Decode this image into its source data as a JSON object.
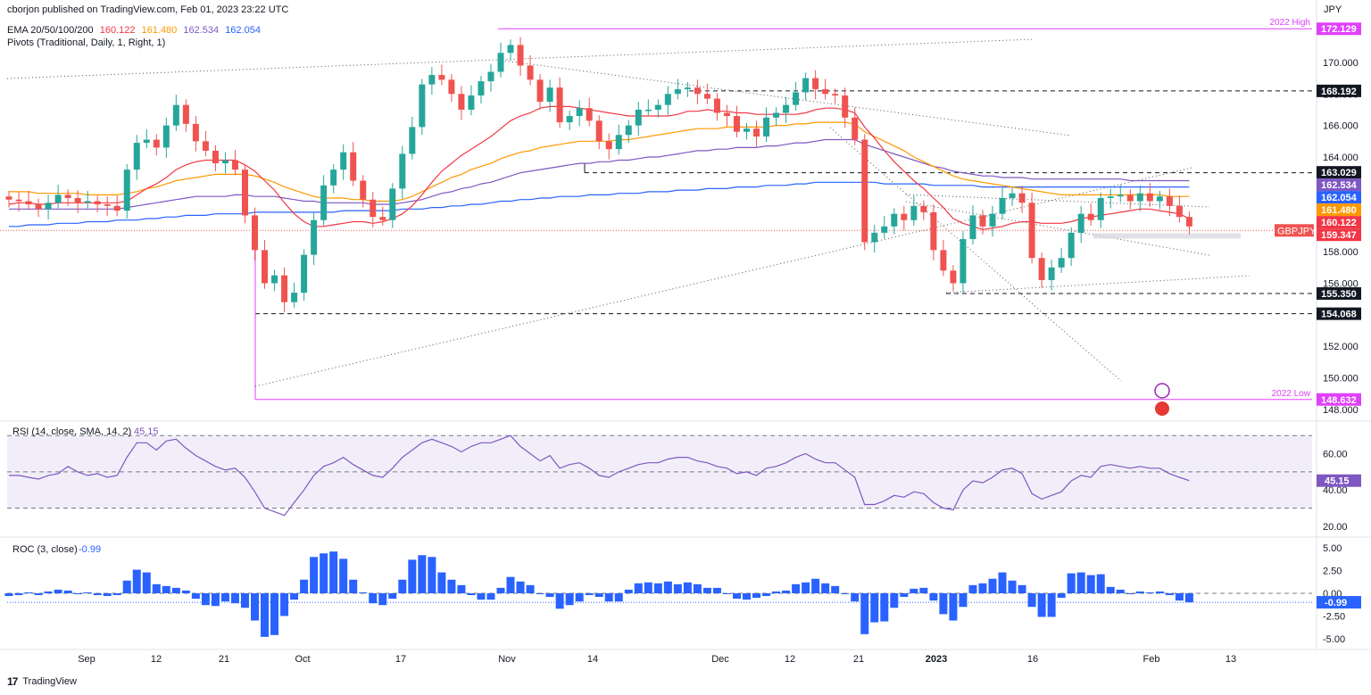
{
  "header": {
    "publisher": "cborjon published on TradingView.com, Feb 01, 2023 23:22 UTC",
    "ema_label": "EMA 20/50/100/200",
    "ema_values": [
      "160.122",
      "161.480",
      "162.534",
      "162.054"
    ],
    "pivots_label": "Pivots (Traditional, Daily, 1, Right, 1)",
    "currency": "JPY"
  },
  "colors": {
    "bull": "#26a69a",
    "bear": "#ef5350",
    "ema20": "#f23645",
    "ema50": "#ff9800",
    "ema100": "#7e57c2",
    "ema200": "#2962ff",
    "pivot": "#e040fb",
    "rsi": "#7e57c2",
    "roc": "#2962ff"
  },
  "chart_data": [
    {
      "type": "candlestick",
      "symbol": "GBPJPY",
      "last_price": "159.347",
      "x_labels": [
        "Sep",
        "12",
        "21",
        "Oct",
        "17",
        "Nov",
        "14",
        "Dec",
        "12",
        "21",
        "2023",
        "16",
        "Feb",
        "13"
      ],
      "ylim": [
        147.6,
        173.5
      ],
      "y_ticks": [
        "148.000",
        "150.000",
        "152.000",
        "154.000",
        "156.000",
        "158.000",
        "160.000",
        "162.000",
        "164.000",
        "166.000",
        "168.000",
        "170.000"
      ],
      "axis_badges": [
        {
          "text": "172.129",
          "value": 172.129,
          "color": "#e040fb"
        },
        {
          "text": "168.192",
          "value": 168.192,
          "color": "#131722"
        },
        {
          "text": "163.029",
          "value": 163.029,
          "color": "#131722"
        },
        {
          "text": "162.534",
          "value": 162.534,
          "color": "#7e57c2"
        },
        {
          "text": "162.054",
          "value": 162.054,
          "color": "#2962ff"
        },
        {
          "text": "161.480",
          "value": 161.48,
          "color": "#ff9800"
        },
        {
          "text": "160.122",
          "value": 160.122,
          "color": "#f23645"
        },
        {
          "text": "159.347",
          "value": 159.347,
          "color": "#f23645"
        },
        {
          "text": "155.350",
          "value": 155.35,
          "color": "#131722"
        },
        {
          "text": "154.068",
          "value": 154.068,
          "color": "#131722"
        },
        {
          "text": "148.632",
          "value": 148.632,
          "color": "#e040fb"
        }
      ],
      "annotations": [
        {
          "text": "2022 High",
          "value": 172.129
        },
        {
          "text": "2022 Low",
          "value": 148.632
        }
      ],
      "candles_close": [
        161.3,
        161.2,
        161.0,
        160.7,
        161.1,
        161.6,
        161.4,
        161.1,
        161.2,
        161.0,
        160.9,
        160.6,
        163.2,
        164.9,
        165.1,
        164.6,
        166.0,
        167.3,
        166.1,
        165.0,
        164.4,
        163.6,
        163.8,
        163.2,
        160.3,
        158.1,
        156.0,
        156.5,
        154.8,
        155.4,
        157.8,
        160.0,
        162.2,
        163.2,
        164.3,
        162.5,
        161.3,
        160.2,
        160.0,
        162.0,
        164.2,
        165.9,
        168.6,
        169.2,
        168.9,
        168.0,
        167.0,
        167.9,
        168.8,
        169.4,
        170.6,
        171.1,
        169.8,
        168.9,
        167.5,
        168.4,
        166.2,
        166.6,
        167.1,
        166.3,
        165.0,
        164.5,
        165.4,
        166.0,
        167.0,
        167.0,
        167.3,
        168.0,
        168.3,
        168.4,
        168.0,
        167.7,
        166.8,
        166.6,
        165.6,
        165.8,
        165.3,
        166.5,
        166.8,
        167.3,
        168.1,
        169.0,
        168.3,
        168.0,
        167.9,
        166.5,
        165.1,
        158.6,
        159.2,
        159.6,
        160.4,
        160.0,
        160.9,
        160.5,
        158.1,
        156.8,
        156.0,
        158.8,
        160.3,
        159.6,
        160.4,
        161.4,
        161.7,
        161.1,
        157.6,
        156.2,
        157.0,
        157.6,
        159.2,
        160.4,
        160.0,
        161.4,
        161.5,
        161.6,
        161.2,
        161.7,
        161.2,
        161.5,
        160.9,
        160.2,
        159.6
      ],
      "ema20": [
        161.0,
        161.1,
        161.1,
        161.0,
        161.0,
        161.1,
        161.1,
        161.1,
        161.1,
        161.1,
        161.1,
        161.1,
        161.2,
        161.6,
        162.0,
        162.3,
        162.7,
        163.2,
        163.5,
        163.7,
        163.8,
        163.8,
        163.8,
        163.8,
        163.5,
        163.1,
        162.5,
        161.9,
        161.1,
        160.4,
        159.9,
        159.6,
        159.6,
        159.7,
        159.8,
        159.9,
        159.9,
        159.8,
        159.9,
        160.1,
        160.4,
        160.9,
        161.6,
        162.4,
        163.1,
        163.6,
        164.1,
        164.5,
        164.9,
        165.3,
        165.8,
        166.3,
        166.6,
        166.8,
        167.1,
        167.2,
        167.2,
        167.2,
        167.1,
        167.0,
        166.9,
        166.8,
        166.7,
        166.6,
        166.6,
        166.6,
        166.6,
        166.6,
        166.7,
        166.9,
        166.9,
        167.0,
        166.9,
        166.9,
        166.8,
        166.8,
        166.7,
        166.7,
        166.7,
        166.7,
        166.7,
        166.8,
        167.0,
        167.1,
        167.1,
        167.0,
        166.8,
        165.9,
        165.2,
        164.4,
        163.7,
        163.1,
        162.5,
        162.0,
        161.4,
        160.8,
        160.1,
        159.8,
        159.6,
        159.4,
        159.5,
        159.6,
        159.8,
        159.9,
        159.9,
        159.8,
        159.8,
        159.8,
        159.9,
        160.1,
        160.2,
        160.3,
        160.4,
        160.5,
        160.6,
        160.7,
        160.7,
        160.6,
        160.5,
        160.4,
        160.1
      ],
      "ema50": [
        161.8,
        161.8,
        161.8,
        161.7,
        161.7,
        161.7,
        161.7,
        161.7,
        161.6,
        161.6,
        161.6,
        161.6,
        161.7,
        161.8,
        162.0,
        162.1,
        162.3,
        162.5,
        162.6,
        162.7,
        162.8,
        162.9,
        162.9,
        162.9,
        162.9,
        162.8,
        162.6,
        162.4,
        162.1,
        161.9,
        161.7,
        161.5,
        161.4,
        161.4,
        161.4,
        161.3,
        161.3,
        161.2,
        161.2,
        161.2,
        161.3,
        161.5,
        161.8,
        162.1,
        162.4,
        162.7,
        162.9,
        163.2,
        163.4,
        163.6,
        163.9,
        164.1,
        164.3,
        164.4,
        164.6,
        164.7,
        164.8,
        164.9,
        165.0,
        165.0,
        165.0,
        165.0,
        165.1,
        165.1,
        165.2,
        165.3,
        165.4,
        165.5,
        165.6,
        165.7,
        165.8,
        165.8,
        165.8,
        165.9,
        165.9,
        165.9,
        165.9,
        165.9,
        166.0,
        166.0,
        166.1,
        166.1,
        166.2,
        166.2,
        166.2,
        166.2,
        166.1,
        165.6,
        165.3,
        165.0,
        164.7,
        164.4,
        164.0,
        163.7,
        163.4,
        163.1,
        162.8,
        162.6,
        162.5,
        162.4,
        162.3,
        162.2,
        162.1,
        162.0,
        161.9,
        161.8,
        161.7,
        161.6,
        161.6,
        161.6,
        161.6,
        161.6,
        161.6,
        161.6,
        161.6,
        161.6,
        161.6,
        161.6,
        161.5,
        161.5,
        161.5
      ],
      "ema100": [
        160.7,
        160.7,
        160.7,
        160.7,
        160.7,
        160.7,
        160.7,
        160.7,
        160.7,
        160.7,
        160.7,
        160.7,
        160.8,
        160.9,
        161.0,
        161.1,
        161.2,
        161.3,
        161.4,
        161.5,
        161.5,
        161.5,
        161.5,
        161.6,
        161.6,
        161.5,
        161.5,
        161.5,
        161.4,
        161.3,
        161.2,
        161.2,
        161.1,
        161.1,
        161.1,
        161.1,
        161.1,
        161.0,
        161.0,
        161.0,
        161.1,
        161.2,
        161.3,
        161.5,
        161.7,
        161.8,
        162.0,
        162.1,
        162.3,
        162.4,
        162.6,
        162.8,
        163.0,
        163.1,
        163.2,
        163.3,
        163.4,
        163.5,
        163.6,
        163.6,
        163.7,
        163.7,
        163.8,
        163.8,
        163.9,
        164.0,
        164.0,
        164.1,
        164.2,
        164.3,
        164.4,
        164.4,
        164.5,
        164.5,
        164.6,
        164.6,
        164.6,
        164.7,
        164.7,
        164.8,
        164.9,
        164.9,
        165.0,
        165.1,
        165.1,
        165.1,
        165.1,
        164.8,
        164.6,
        164.4,
        164.2,
        164.0,
        163.8,
        163.6,
        163.4,
        163.3,
        163.1,
        163.0,
        162.9,
        162.8,
        162.8,
        162.7,
        162.7,
        162.7,
        162.6,
        162.6,
        162.6,
        162.6,
        162.6,
        162.6,
        162.6,
        162.6,
        162.6,
        162.6,
        162.5,
        162.5,
        162.5,
        162.5,
        162.5,
        162.5,
        162.5
      ],
      "ema200": [
        159.6,
        159.6,
        159.7,
        159.7,
        159.7,
        159.8,
        159.8,
        159.8,
        159.9,
        159.9,
        159.9,
        160.0,
        160.0,
        160.0,
        160.1,
        160.1,
        160.2,
        160.2,
        160.3,
        160.3,
        160.3,
        160.4,
        160.4,
        160.4,
        160.4,
        160.5,
        160.5,
        160.5,
        160.5,
        160.5,
        160.5,
        160.5,
        160.5,
        160.5,
        160.6,
        160.6,
        160.6,
        160.6,
        160.6,
        160.6,
        160.7,
        160.7,
        160.7,
        160.8,
        160.8,
        160.9,
        160.9,
        161.0,
        161.0,
        161.1,
        161.2,
        161.2,
        161.3,
        161.3,
        161.4,
        161.4,
        161.5,
        161.5,
        161.5,
        161.6,
        161.6,
        161.6,
        161.7,
        161.7,
        161.7,
        161.8,
        161.8,
        161.8,
        161.9,
        161.9,
        161.9,
        162.0,
        162.0,
        162.0,
        162.1,
        162.1,
        162.1,
        162.2,
        162.2,
        162.2,
        162.3,
        162.3,
        162.4,
        162.4,
        162.4,
        162.4,
        162.4,
        162.4,
        162.4,
        162.3,
        162.3,
        162.3,
        162.3,
        162.3,
        162.2,
        162.2,
        162.2,
        162.2,
        162.2,
        162.1,
        162.1,
        162.1,
        162.1,
        162.1,
        162.1,
        162.1,
        162.1,
        162.1,
        162.1,
        162.1,
        162.1,
        162.1,
        162.1,
        162.1,
        162.1,
        162.1,
        162.1,
        162.1,
        162.1,
        162.1,
        162.1
      ]
    },
    {
      "type": "line",
      "title": "RSI (14, close, SMA, 14, 2)",
      "last_value": "45.15",
      "y_ticks": [
        "20.00",
        "40.00",
        "60.00"
      ],
      "ylim": [
        16,
        76
      ],
      "band": [
        30,
        70
      ],
      "mid": 50,
      "values": [
        48,
        48,
        47,
        46,
        48,
        49,
        53,
        50,
        48,
        49,
        47,
        48,
        58,
        66,
        66,
        62,
        67,
        68,
        63,
        59,
        56,
        53,
        51,
        52,
        47,
        39,
        30,
        28,
        26,
        33,
        40,
        48,
        53,
        55,
        58,
        54,
        51,
        48,
        47,
        52,
        58,
        62,
        66,
        68,
        66,
        64,
        61,
        64,
        66,
        66,
        68,
        70,
        64,
        60,
        56,
        59,
        52,
        54,
        55,
        52,
        48,
        47,
        50,
        52,
        54,
        55,
        55,
        57,
        58,
        58,
        56,
        55,
        53,
        52,
        49,
        50,
        48,
        52,
        53,
        55,
        58,
        60,
        57,
        55,
        55,
        51,
        47,
        32,
        32,
        34,
        37,
        36,
        39,
        38,
        33,
        30,
        29,
        40,
        45,
        44,
        47,
        51,
        52,
        49,
        38,
        35,
        37,
        39,
        45,
        48,
        47,
        53,
        54,
        53,
        52,
        53,
        52,
        52,
        49,
        47,
        45.15
      ]
    },
    {
      "type": "bar",
      "title": "ROC (3, close)",
      "last_value": "-0.99",
      "y_ticks": [
        "-5.00",
        "-2.50",
        "0.00",
        "2.50",
        "5.00"
      ],
      "ylim": [
        -5.8,
        5.8
      ],
      "values": [
        -0.3,
        -0.2,
        0.1,
        -0.2,
        0.2,
        0.4,
        0.3,
        -0.1,
        0.1,
        -0.2,
        -0.3,
        -0.2,
        1.4,
        2.6,
        2.3,
        1.0,
        0.8,
        0.6,
        0.3,
        -0.6,
        -1.3,
        -1.4,
        -0.9,
        -1.1,
        -1.6,
        -3.0,
        -4.8,
        -4.6,
        -2.5,
        -0.7,
        1.5,
        4.0,
        4.4,
        4.6,
        3.8,
        1.5,
        0.1,
        -1.1,
        -1.3,
        -0.6,
        1.5,
        3.7,
        4.2,
        4.0,
        2.3,
        1.5,
        0.9,
        -0.2,
        -0.7,
        -0.7,
        0.6,
        1.8,
        1.3,
        0.9,
        -0.1,
        -0.4,
        -1.7,
        -1.3,
        -0.9,
        -0.2,
        -0.4,
        -0.9,
        -0.9,
        0.4,
        1.1,
        1.2,
        1.1,
        1.3,
        1.0,
        1.2,
        1.0,
        0.6,
        0.6,
        -0.1,
        -0.6,
        -0.7,
        -0.5,
        -0.3,
        0.2,
        0.3,
        1.0,
        1.2,
        1.6,
        1.1,
        0.8,
        -0.1,
        -0.9,
        -4.5,
        -3.2,
        -3.1,
        -1.6,
        -0.4,
        0.5,
        0.6,
        -0.8,
        -2.3,
        -3.0,
        -1.5,
        0.9,
        1.1,
        1.6,
        2.3,
        1.4,
        0.9,
        -1.5,
        -2.6,
        -2.6,
        -0.5,
        2.2,
        2.3,
        2.0,
        2.1,
        0.7,
        0.4,
        0.0,
        0.2,
        0.1,
        0.2,
        -0.2,
        -0.8,
        -0.99
      ]
    }
  ],
  "footer": {
    "brand": "TradingView"
  }
}
